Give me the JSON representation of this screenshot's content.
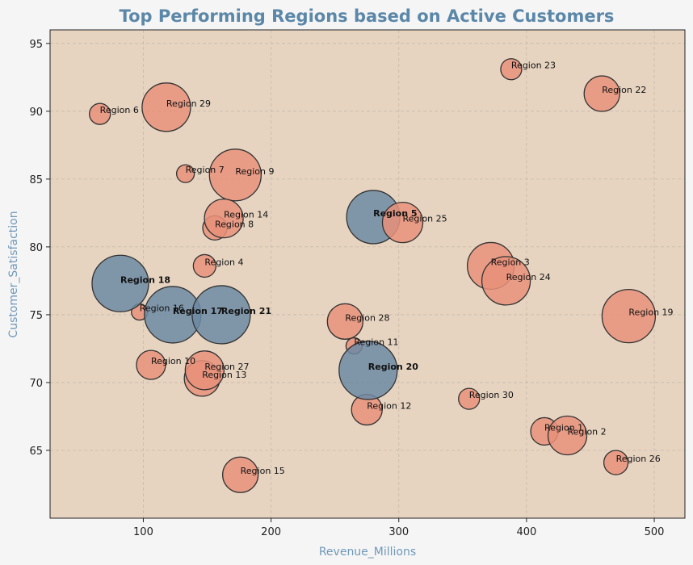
{
  "chart_data": {
    "type": "scatter",
    "title": "Top Performing Regions based on Active Customers",
    "xlabel": "Revenue_Millions",
    "ylabel": "Customer_Satisfaction",
    "xlim": [
      27,
      524
    ],
    "ylim": [
      60,
      96
    ],
    "xticks": [
      100,
      200,
      300,
      400,
      500
    ],
    "yticks": [
      65,
      70,
      75,
      80,
      85,
      90,
      95
    ],
    "grid": true,
    "size_meaning": "Active Customers (bubble size)",
    "colors": {
      "background": "#f5f5f5",
      "plot_bg": "#e6d4c1",
      "normal_bubble": "#e8907a",
      "highlight_bubble": "#6c8aa3",
      "bubble_edge": "#333333",
      "title": "#5b87a8",
      "axis_label": "#6f98b8",
      "grid": "#c9b9a8"
    },
    "points": [
      {
        "label": "Region 1",
        "x": 414,
        "y": 66.4,
        "r": 17,
        "highlight": false
      },
      {
        "label": "Region 2",
        "x": 432,
        "y": 66.1,
        "r": 24,
        "highlight": false
      },
      {
        "label": "Region 3",
        "x": 372,
        "y": 78.6,
        "r": 29,
        "highlight": false
      },
      {
        "label": "Region 4",
        "x": 148,
        "y": 78.6,
        "r": 14,
        "highlight": false
      },
      {
        "label": "Region 5",
        "x": 280,
        "y": 82.2,
        "r": 33,
        "highlight": true
      },
      {
        "label": "Region 6",
        "x": 66,
        "y": 89.8,
        "r": 13,
        "highlight": false
      },
      {
        "label": "Region 7",
        "x": 133,
        "y": 85.4,
        "r": 11,
        "highlight": false
      },
      {
        "label": "Region 8",
        "x": 156,
        "y": 81.4,
        "r": 15,
        "highlight": false
      },
      {
        "label": "Region 9",
        "x": 172,
        "y": 85.3,
        "r": 32,
        "highlight": false
      },
      {
        "label": "Region 10",
        "x": 106,
        "y": 71.3,
        "r": 18,
        "highlight": false
      },
      {
        "label": "Region 11",
        "x": 265,
        "y": 72.7,
        "r": 10,
        "highlight": false
      },
      {
        "label": "Region 12",
        "x": 275,
        "y": 68.0,
        "r": 19,
        "highlight": false
      },
      {
        "label": "Region 13",
        "x": 146,
        "y": 70.3,
        "r": 22,
        "highlight": false
      },
      {
        "label": "Region 14",
        "x": 163,
        "y": 82.1,
        "r": 24,
        "highlight": false
      },
      {
        "label": "Region 15",
        "x": 176,
        "y": 63.2,
        "r": 22,
        "highlight": false
      },
      {
        "label": "Region 16",
        "x": 97,
        "y": 75.2,
        "r": 10,
        "highlight": false
      },
      {
        "label": "Region 17",
        "x": 123,
        "y": 75.0,
        "r": 35,
        "highlight": true
      },
      {
        "label": "Region 18",
        "x": 82,
        "y": 77.3,
        "r": 35,
        "highlight": true
      },
      {
        "label": "Region 19",
        "x": 480,
        "y": 74.9,
        "r": 33,
        "highlight": false
      },
      {
        "label": "Region 20",
        "x": 276,
        "y": 70.9,
        "r": 36,
        "highlight": true
      },
      {
        "label": "Region 21",
        "x": 161,
        "y": 75.0,
        "r": 36,
        "highlight": true
      },
      {
        "label": "Region 22",
        "x": 459,
        "y": 91.3,
        "r": 22,
        "highlight": false
      },
      {
        "label": "Region 23",
        "x": 388,
        "y": 93.1,
        "r": 13,
        "highlight": false
      },
      {
        "label": "Region 24",
        "x": 384,
        "y": 77.5,
        "r": 30,
        "highlight": false
      },
      {
        "label": "Region 25",
        "x": 303,
        "y": 81.8,
        "r": 25,
        "highlight": false
      },
      {
        "label": "Region 26",
        "x": 470,
        "y": 64.1,
        "r": 15,
        "highlight": false
      },
      {
        "label": "Region 27",
        "x": 148,
        "y": 70.9,
        "r": 24,
        "highlight": false
      },
      {
        "label": "Region 28",
        "x": 258,
        "y": 74.5,
        "r": 22,
        "highlight": false
      },
      {
        "label": "Region 29",
        "x": 118,
        "y": 90.3,
        "r": 30,
        "highlight": false
      },
      {
        "label": "Region 30",
        "x": 355,
        "y": 68.8,
        "r": 13,
        "highlight": false
      }
    ]
  }
}
